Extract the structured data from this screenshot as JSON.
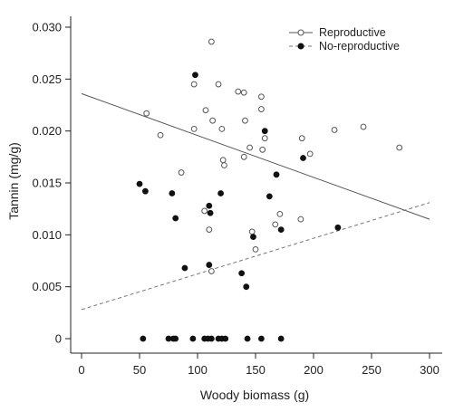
{
  "chart_data": {
    "type": "scatter",
    "title": "",
    "xlabel": "Woody biomass (g)",
    "ylabel": "Tannin (mg/g)",
    "xlim": [
      0,
      300
    ],
    "ylim": [
      0,
      0.03
    ],
    "xticks": [
      "0",
      "50",
      "100",
      "150",
      "200",
      "250",
      "300"
    ],
    "yticks": [
      "0",
      "0.005",
      "0.010",
      "0.015",
      "0.020",
      "0.025",
      "0.030"
    ],
    "grid": false,
    "legend_position": "top-right",
    "series": [
      {
        "name": "Reproductive",
        "marker": "open-circle",
        "color": "#555555",
        "points": [
          [
            56,
            0.0217
          ],
          [
            68,
            0.0196
          ],
          [
            86,
            0.016
          ],
          [
            97,
            0.0245
          ],
          [
            97,
            0.0202
          ],
          [
            107,
            0.022
          ],
          [
            110,
            0.0105
          ],
          [
            112,
            0.0286
          ],
          [
            112,
            0.0065
          ],
          [
            113,
            0.021
          ],
          [
            118,
            0.0245
          ],
          [
            121,
            0.0202
          ],
          [
            122,
            0.0172
          ],
          [
            123,
            0.0167
          ],
          [
            135,
            0.0238
          ],
          [
            140,
            0.0237
          ],
          [
            140,
            0.0175
          ],
          [
            141,
            0.021
          ],
          [
            145,
            0.0184
          ],
          [
            147,
            0.0103
          ],
          [
            150,
            0.0086
          ],
          [
            155,
            0.0233
          ],
          [
            155,
            0.0221
          ],
          [
            156,
            0.0182
          ],
          [
            158,
            0.0193
          ],
          [
            167,
            0.011
          ],
          [
            171,
            0.012
          ],
          [
            189,
            0.0115
          ],
          [
            190,
            0.0193
          ],
          [
            197,
            0.0178
          ],
          [
            218,
            0.0201
          ],
          [
            243,
            0.0204
          ],
          [
            274,
            0.0184
          ],
          [
            106,
            0.0123
          ]
        ]
      },
      {
        "name": "No-reproductive",
        "marker": "filled-circle",
        "color": "#111111",
        "points": [
          [
            50,
            0.0149
          ],
          [
            55,
            0.0142
          ],
          [
            78,
            0.014
          ],
          [
            81,
            0.0116
          ],
          [
            89,
            0.0068
          ],
          [
            98,
            0.0254
          ],
          [
            110,
            0.0128
          ],
          [
            110,
            0.0071
          ],
          [
            111,
            0.0121
          ],
          [
            120,
            0.014
          ],
          [
            138,
            0.0063
          ],
          [
            142,
            0.005
          ],
          [
            148,
            0.0098
          ],
          [
            158,
            0.02
          ],
          [
            162,
            0.0137
          ],
          [
            168,
            0.0158
          ],
          [
            172,
            0.0105
          ],
          [
            191,
            0.0174
          ],
          [
            221,
            0.0107
          ],
          [
            53,
            0
          ],
          [
            75,
            0
          ],
          [
            79,
            0
          ],
          [
            81,
            0
          ],
          [
            96,
            0
          ],
          [
            106,
            0
          ],
          [
            109,
            0
          ],
          [
            112,
            0
          ],
          [
            118,
            0
          ],
          [
            121,
            0
          ],
          [
            124,
            0
          ],
          [
            143,
            0
          ],
          [
            155,
            0
          ],
          [
            172,
            0
          ]
        ]
      }
    ],
    "trend_lines": [
      {
        "series": "Reproductive",
        "style": "solid",
        "color": "#555555",
        "from": [
          0,
          0.0236
        ],
        "to": [
          300,
          0.0115
        ]
      },
      {
        "series": "No-reproductive",
        "style": "dashed",
        "color": "#777777",
        "from": [
          0,
          0.0028
        ],
        "to": [
          300,
          0.0131
        ]
      }
    ]
  }
}
